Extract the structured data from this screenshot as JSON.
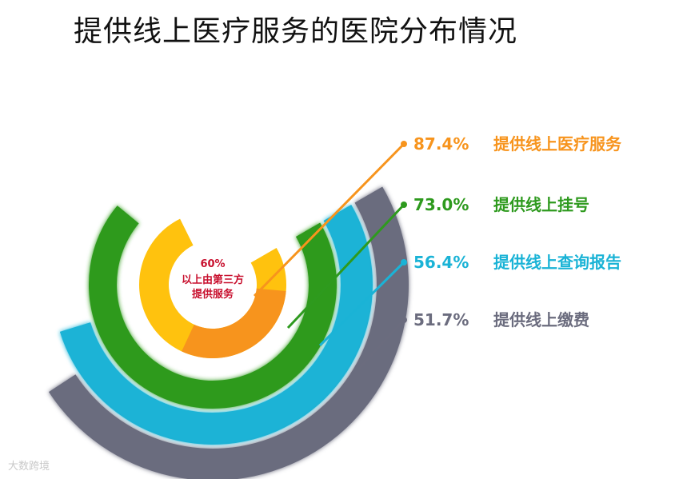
{
  "title": "提供线上医疗服务的医院分布情况",
  "watermark": "大数跨境",
  "chart_data": {
    "type": "radial-bar",
    "title": "提供线上医疗服务的医院分布情况",
    "series": [
      {
        "label": "提供线上医疗服务",
        "value": 87.4,
        "value_text": "87.4%",
        "color": "#f7941d"
      },
      {
        "label": "提供线上挂号",
        "value": 73.0,
        "value_text": "73.0%",
        "color": "#2e9a1e"
      },
      {
        "label": "提供线上查询报告",
        "value": 56.4,
        "value_text": "56.4%",
        "color": "#1ab3d6"
      },
      {
        "label": "提供线上缴费",
        "value": 51.7,
        "value_text": "51.7%",
        "color": "#6b6c7e"
      }
    ],
    "inner": {
      "value": 60,
      "value_text": "60%",
      "text_lines": [
        "以上由第三方",
        "提供服务"
      ],
      "color": "#ffc20e",
      "highlight_color": "#f7941d"
    }
  }
}
